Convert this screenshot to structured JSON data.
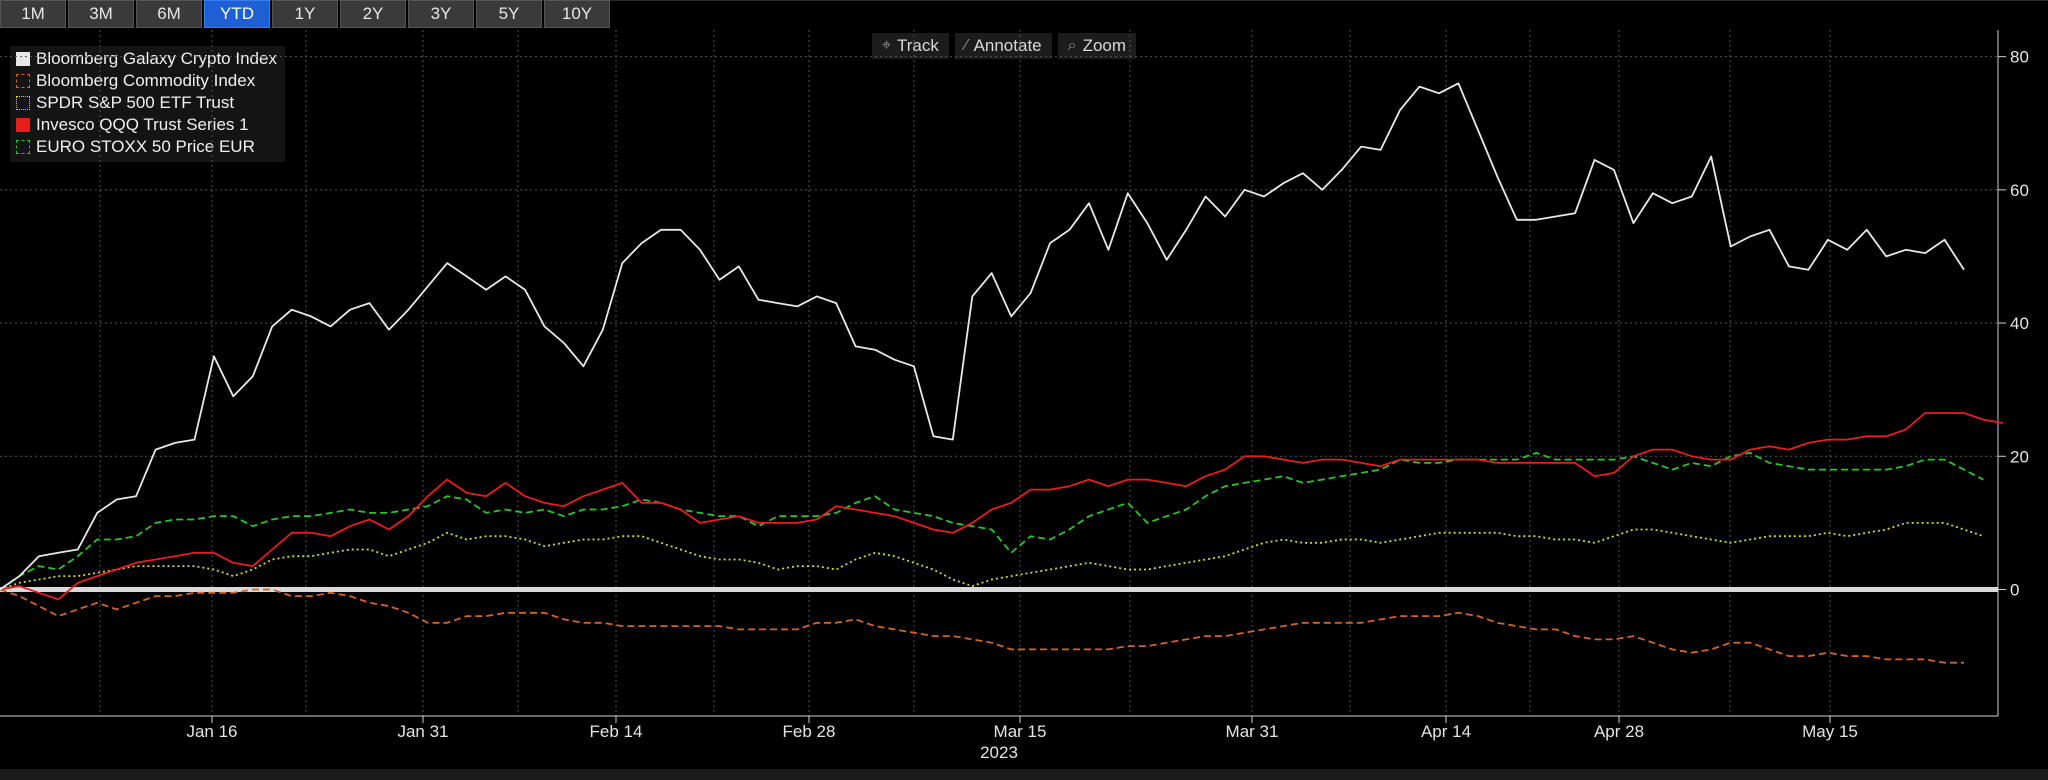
{
  "toolbar": {
    "ranges": [
      "1M",
      "3M",
      "6M",
      "YTD",
      "1Y",
      "2Y",
      "3Y",
      "5Y",
      "10Y"
    ],
    "active_range": "YTD",
    "tools": [
      {
        "label": "Track",
        "icon": "crosshair-icon"
      },
      {
        "label": "Annotate",
        "icon": "pencil-icon"
      },
      {
        "label": "Zoom",
        "icon": "magnifier-icon"
      }
    ]
  },
  "colors": {
    "background": "#000000",
    "grid": "#555555",
    "zero_line": "#d9d9d9",
    "active_tab": "#1f5fd6"
  },
  "chart_data": {
    "type": "line",
    "title": "",
    "xlabel": "2023",
    "ylabel": "",
    "ylim": [
      -19,
      84
    ],
    "x_ticks": [
      "Jan 16",
      "Jan 31",
      "Feb 14",
      "Feb 28",
      "Mar 15",
      "Mar 31",
      "Apr 14",
      "Apr 28",
      "May 15"
    ],
    "y_ticks": [
      "80",
      "60",
      "40",
      "20",
      "0"
    ],
    "grid": true,
    "legend_position": "top-left",
    "series": [
      {
        "name": "Bloomberg Galaxy Crypto Index",
        "color": "#e8e8e8",
        "style": "solid",
        "values": [
          0,
          2,
          5,
          5.5,
          6,
          11.5,
          13.5,
          14,
          21,
          22,
          22.5,
          35,
          29,
          32,
          39.5,
          42,
          41,
          39.5,
          42,
          43,
          39,
          42,
          45.5,
          49,
          47,
          45,
          47,
          45,
          39.5,
          37,
          33.5,
          39,
          49,
          52,
          54,
          54,
          51,
          46.5,
          48.5,
          43.5,
          43,
          42.5,
          44,
          43,
          36.5,
          36,
          34.5,
          33.5,
          23,
          22.5,
          44,
          47.5,
          41,
          44.5,
          52,
          54,
          58,
          51,
          59.5,
          55,
          49.5,
          54,
          59,
          56,
          60,
          59,
          61,
          62.5,
          60,
          63,
          66.5,
          66,
          72,
          75.5,
          74.5,
          76,
          69,
          62,
          55.5,
          55.5,
          56,
          56.5,
          64.5,
          63,
          55,
          59.5,
          58,
          59,
          65,
          51.5,
          53,
          54,
          48.5,
          48,
          52.5,
          51,
          54,
          50,
          51,
          50.5,
          52.5,
          48
        ]
      },
      {
        "name": "Bloomberg Commodity Index",
        "color": "#d2642a",
        "style": "dashed",
        "values": [
          0,
          -1,
          -2.5,
          -4,
          -3,
          -2,
          -3,
          -2,
          -1,
          -1,
          -0.5,
          -0.5,
          -0.5,
          0,
          0,
          -1,
          -1,
          -0.5,
          -1,
          -2,
          -2.5,
          -3.5,
          -5,
          -5,
          -4,
          -4,
          -3.5,
          -3.5,
          -3.5,
          -4.5,
          -5,
          -5,
          -5.5,
          -5.5,
          -5.5,
          -5.5,
          -5.5,
          -5.5,
          -6,
          -6,
          -6,
          -6,
          -5,
          -5,
          -4.5,
          -5.5,
          -6,
          -6.5,
          -7,
          -7,
          -7.5,
          -8,
          -9,
          -9,
          -9,
          -9,
          -9,
          -9,
          -8.5,
          -8.5,
          -8,
          -7.5,
          -7,
          -7,
          -6.5,
          -6,
          -5.5,
          -5,
          -5,
          -5,
          -5,
          -4.5,
          -4,
          -4,
          -4,
          -3.5,
          -4,
          -5,
          -5.5,
          -6,
          -6,
          -7,
          -7.5,
          -7.5,
          -7,
          -8,
          -9,
          -9.5,
          -9,
          -8,
          -8,
          -9,
          -10,
          -10,
          -9.5,
          -10,
          -10,
          -10.5,
          -10.5,
          -10.5,
          -11,
          -11
        ]
      },
      {
        "name": "SPDR S&P 500 ETF Trust",
        "color": "#d7d33a",
        "style": "dotted",
        "values": [
          0,
          1,
          1.5,
          2,
          2,
          2.5,
          3,
          3.5,
          3.5,
          3.5,
          3.5,
          3,
          2,
          3,
          4.5,
          5,
          5,
          5.5,
          6,
          6,
          5,
          6,
          7,
          8.5,
          7.5,
          8,
          8,
          7.5,
          6.5,
          7,
          7.5,
          7.5,
          8,
          8,
          7,
          6,
          5,
          4.5,
          4.5,
          4,
          3,
          3.5,
          3.5,
          3,
          4.5,
          5.5,
          5,
          4,
          3,
          1.5,
          0.5,
          1.5,
          2,
          2.5,
          3,
          3.5,
          4,
          3.5,
          3,
          3,
          3.5,
          4,
          4.5,
          5,
          6,
          7,
          7.5,
          7,
          7,
          7.5,
          7.5,
          7,
          7.5,
          8,
          8.5,
          8.5,
          8.5,
          8.5,
          8,
          8,
          7.5,
          7.5,
          7,
          8,
          9,
          9,
          8.5,
          8,
          7.5,
          7,
          7.5,
          8,
          8,
          8,
          8.5,
          8,
          8.5,
          9,
          10,
          10,
          10,
          9,
          8
        ]
      },
      {
        "name": "Invesco QQQ Trust Series 1",
        "color": "#e81e1e",
        "style": "solid",
        "values": [
          0,
          0.5,
          -0.5,
          -1.5,
          1,
          2,
          3,
          4,
          4.5,
          5,
          5.5,
          5.5,
          4,
          3.5,
          6,
          8.5,
          8.5,
          8,
          9.5,
          10.5,
          9,
          11,
          14,
          16.5,
          14.5,
          14,
          16,
          14,
          13,
          12.5,
          14,
          15,
          16,
          13,
          13,
          12,
          10,
          10.5,
          11,
          10,
          10,
          10,
          10.5,
          12.5,
          12,
          11.5,
          11,
          10,
          9,
          8.5,
          10,
          12,
          13,
          15,
          15,
          15.5,
          16.5,
          15.5,
          16.5,
          16.5,
          16,
          15.5,
          17,
          18,
          20,
          20,
          19.5,
          19,
          19.5,
          19.5,
          19,
          18.5,
          19.5,
          19.5,
          19.5,
          19.5,
          19.5,
          19,
          19,
          19,
          19,
          19,
          17,
          17.5,
          20,
          21,
          21,
          20,
          19.5,
          19.5,
          21,
          21.5,
          21,
          22,
          22.5,
          22.5,
          23,
          23,
          24,
          26.5,
          26.5,
          26.5,
          25.5,
          25
        ]
      },
      {
        "name": "EURO STOXX 50 Price EUR",
        "color": "#2bc42b",
        "style": "dashed",
        "values": [
          0,
          2,
          3.5,
          3,
          5,
          7.5,
          7.5,
          8,
          10,
          10.5,
          10.5,
          11,
          11,
          9.5,
          10.5,
          11,
          11,
          11.5,
          12,
          11.5,
          11.5,
          12,
          12.5,
          14,
          13.5,
          11.5,
          12,
          11.5,
          12,
          11,
          12,
          12,
          12.5,
          13.5,
          13,
          12,
          11.5,
          11,
          11,
          9.5,
          11,
          11,
          11,
          11.5,
          13,
          14,
          12,
          11.5,
          11,
          10,
          9.5,
          9,
          5.5,
          8,
          7.5,
          9,
          11,
          12,
          13,
          10,
          11,
          12,
          14,
          15.5,
          16,
          16.5,
          17,
          16,
          16.5,
          17,
          17.5,
          18,
          19.5,
          19,
          19,
          19.5,
          19.5,
          19.5,
          19.5,
          20.5,
          19.5,
          19.5,
          19.5,
          19.5,
          20,
          19,
          18,
          19,
          18.5,
          20,
          20.5,
          19,
          18.5,
          18,
          18,
          18,
          18,
          18,
          18.5,
          19.5,
          19.5,
          18,
          16.5
        ]
      }
    ]
  }
}
